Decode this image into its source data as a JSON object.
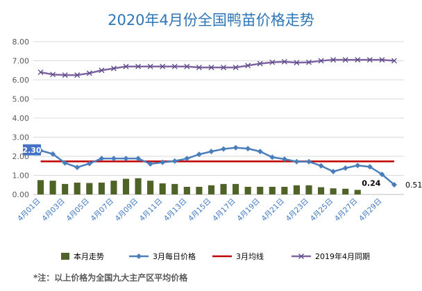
{
  "chart_data": {
    "type": "bar",
    "title": "2020年4月份全国鸭苗价格走势",
    "ylim": [
      0,
      8
    ],
    "yticks": [
      "0.00",
      "1.00",
      "2.00",
      "3.00",
      "4.00",
      "5.00",
      "6.00",
      "7.00",
      "8.00"
    ],
    "grid": "horizontal",
    "legend_position": "bottom",
    "categories_count": 29,
    "xtick_labels": [
      "4月01日",
      "4月03日",
      "4月05日",
      "4月07日",
      "4月09日",
      "4月11日",
      "4月13日",
      "4月15日",
      "4月17日",
      "4月19日",
      "4月21日",
      "4月23日",
      "4月25日",
      "4月27日",
      "4月29日"
    ],
    "series": [
      {
        "name": "本月走势",
        "type": "bar",
        "color": "#4f6228",
        "values": [
          0.75,
          0.72,
          0.55,
          0.62,
          0.6,
          0.62,
          0.72,
          0.82,
          0.85,
          0.72,
          0.58,
          0.55,
          0.4,
          0.4,
          0.48,
          0.55,
          0.55,
          0.4,
          0.4,
          0.4,
          0.4,
          0.48,
          0.48,
          0.38,
          0.32,
          0.3,
          0.24
        ]
      },
      {
        "name": "3月每日价格",
        "type": "line",
        "color": "#4a7ebb",
        "values": [
          2.3,
          2.12,
          1.65,
          1.42,
          1.62,
          1.88,
          1.88,
          1.88,
          1.88,
          1.6,
          1.68,
          1.75,
          1.88,
          2.1,
          2.25,
          2.38,
          2.45,
          2.4,
          2.25,
          1.95,
          1.85,
          1.72,
          1.72,
          1.5,
          1.2,
          1.38,
          1.52,
          1.45,
          1.05,
          0.51
        ]
      },
      {
        "name": "3月均线",
        "type": "line",
        "color": "#c00000",
        "values": [
          1.73
        ]
      },
      {
        "name": "2019年4月同期",
        "type": "line",
        "color": "#8064a2",
        "values": [
          6.4,
          6.28,
          6.25,
          6.25,
          6.35,
          6.5,
          6.6,
          6.7,
          6.7,
          6.7,
          6.7,
          6.7,
          6.7,
          6.65,
          6.65,
          6.65,
          6.65,
          6.75,
          6.85,
          6.92,
          6.95,
          6.9,
          6.92,
          7.0,
          7.05,
          7.05,
          7.05,
          7.05,
          7.05,
          7.0
        ]
      }
    ],
    "annotations": [
      {
        "series": "3月每日价格",
        "index": 0,
        "text": "2.30"
      },
      {
        "series": "本月走势",
        "index": 26,
        "text": "0.24"
      },
      {
        "series": "3月每日价格",
        "index": 29,
        "text": "0.51"
      }
    ]
  },
  "legend": [
    {
      "label": "本月走势",
      "kind": "bar",
      "color": "#4f6228"
    },
    {
      "label": "3月每日价格",
      "kind": "line-diamond",
      "color": "#4a7ebb"
    },
    {
      "label": "3月均线",
      "kind": "line",
      "color": "#c00000"
    },
    {
      "label": "2019年4月同期",
      "kind": "line-x",
      "color": "#8064a2"
    }
  ],
  "note": "*注：以上价格为全国九大主产区平均价格"
}
